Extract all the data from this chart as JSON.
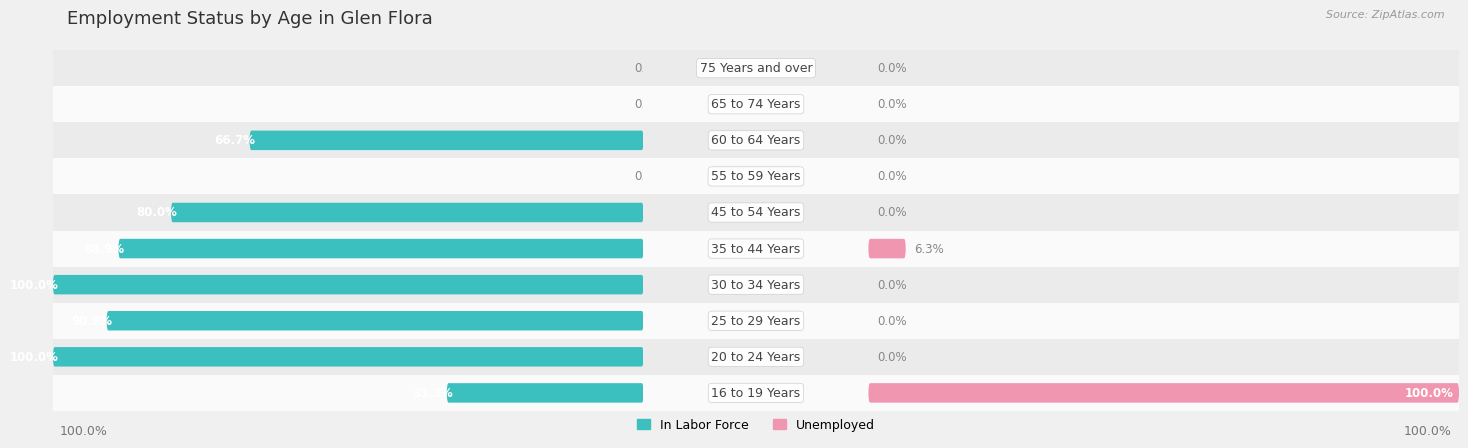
{
  "title": "Employment Status by Age in Glen Flora",
  "source": "Source: ZipAtlas.com",
  "categories": [
    "16 to 19 Years",
    "20 to 24 Years",
    "25 to 29 Years",
    "30 to 34 Years",
    "35 to 44 Years",
    "45 to 54 Years",
    "55 to 59 Years",
    "60 to 64 Years",
    "65 to 74 Years",
    "75 Years and over"
  ],
  "labor_force": [
    33.3,
    100.0,
    90.9,
    100.0,
    88.9,
    80.0,
    0.0,
    66.7,
    0.0,
    0.0
  ],
  "unemployed": [
    100.0,
    0.0,
    0.0,
    0.0,
    6.3,
    0.0,
    0.0,
    0.0,
    0.0,
    0.0
  ],
  "color_labor": "#3bbfbf",
  "color_unemployed": "#f096b0",
  "bar_height": 0.52,
  "xlim": 100,
  "bg_color": "#f0f0f0",
  "row_bg_colors": [
    "#fafafa",
    "#ebebeb"
  ],
  "label_color_inside": "#ffffff",
  "label_color_outside": "#888888",
  "legend_labor": "In Labor Force",
  "legend_unemployed": "Unemployed",
  "bottom_left_label": "100.0%",
  "bottom_right_label": "100.0%",
  "title_fontsize": 13,
  "label_fontsize": 8.5,
  "cat_fontsize": 9
}
